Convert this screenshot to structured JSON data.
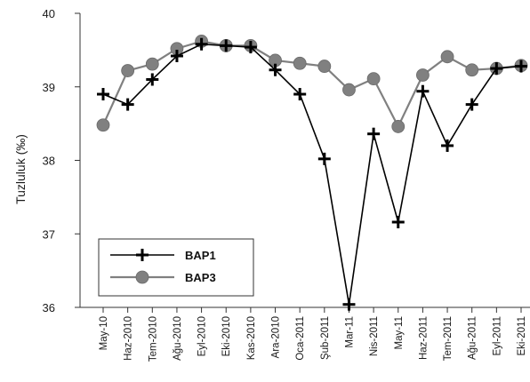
{
  "chart_data": {
    "type": "line",
    "title": "",
    "xlabel": "",
    "ylabel": "Tuzluluk (‰)",
    "categories": [
      "May-10",
      "Haz-2010",
      "Tem-2010",
      "Ağu-2010",
      "Eyl-2010",
      "Eki-2010",
      "Kas-2010",
      "Ara-2010",
      "Oca-2011",
      "Şub-2011",
      "Mar-11",
      "Nis-2011",
      "May-11",
      "Haz-2011",
      "Tem-2011",
      "Ağu-2011",
      "Eyl-2011",
      "Eki-2011"
    ],
    "ylim": [
      36,
      40
    ],
    "yticks": [
      "36",
      "37",
      "38",
      "39",
      "40"
    ],
    "grid": false,
    "legend_position": "bottom-left",
    "series": [
      {
        "name": "BAP1",
        "color": "#000000",
        "marker": "plus",
        "values": [
          38.9,
          38.76,
          39.1,
          39.42,
          39.58,
          39.56,
          39.54,
          39.23,
          38.9,
          38.02,
          36.04,
          38.36,
          37.16,
          38.94,
          38.2,
          38.76,
          39.25,
          39.28
        ]
      },
      {
        "name": "BAP3",
        "color": "#808080",
        "marker": "circle",
        "values": [
          38.48,
          39.22,
          39.31,
          39.52,
          39.62,
          39.56,
          39.56,
          39.36,
          39.32,
          39.28,
          38.96,
          39.11,
          38.46,
          39.16,
          39.41,
          39.23,
          39.25,
          39.29
        ]
      }
    ]
  }
}
